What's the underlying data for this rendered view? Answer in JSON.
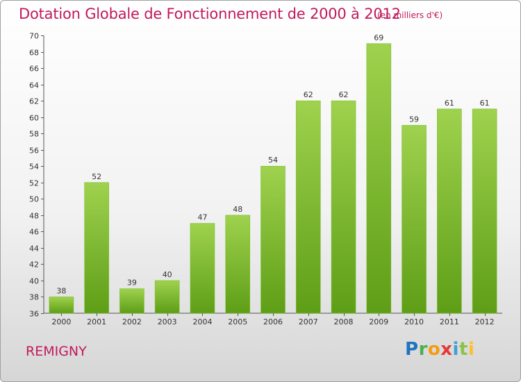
{
  "header": {
    "title": "Dotation Globale de Fonctionnement de 2000 à 2012",
    "unit": "(en milliers d'€)"
  },
  "footer": {
    "commune": "REMIGNY",
    "logo_text": "Proxiti"
  },
  "colors": {
    "title": "#c2185b",
    "bar_top": "#9fd24e",
    "bar_bottom": "#5e9e16"
  },
  "chart_data": {
    "type": "bar",
    "title": "Dotation Globale de Fonctionnement de 2000 à 2012",
    "subtitle": "(en milliers d'€)",
    "xlabel": "",
    "ylabel": "",
    "categories": [
      "2000",
      "2001",
      "2002",
      "2003",
      "2004",
      "2005",
      "2006",
      "2007",
      "2008",
      "2009",
      "2010",
      "2011",
      "2012"
    ],
    "values": [
      38,
      52,
      39,
      40,
      47,
      48,
      54,
      62,
      62,
      69,
      59,
      61,
      61
    ],
    "ylim": [
      36,
      70
    ],
    "yticks": [
      36,
      38,
      40,
      42,
      44,
      46,
      48,
      50,
      52,
      54,
      56,
      58,
      60,
      62,
      64,
      66,
      68,
      70
    ],
    "grid": false,
    "data_labels": true
  }
}
